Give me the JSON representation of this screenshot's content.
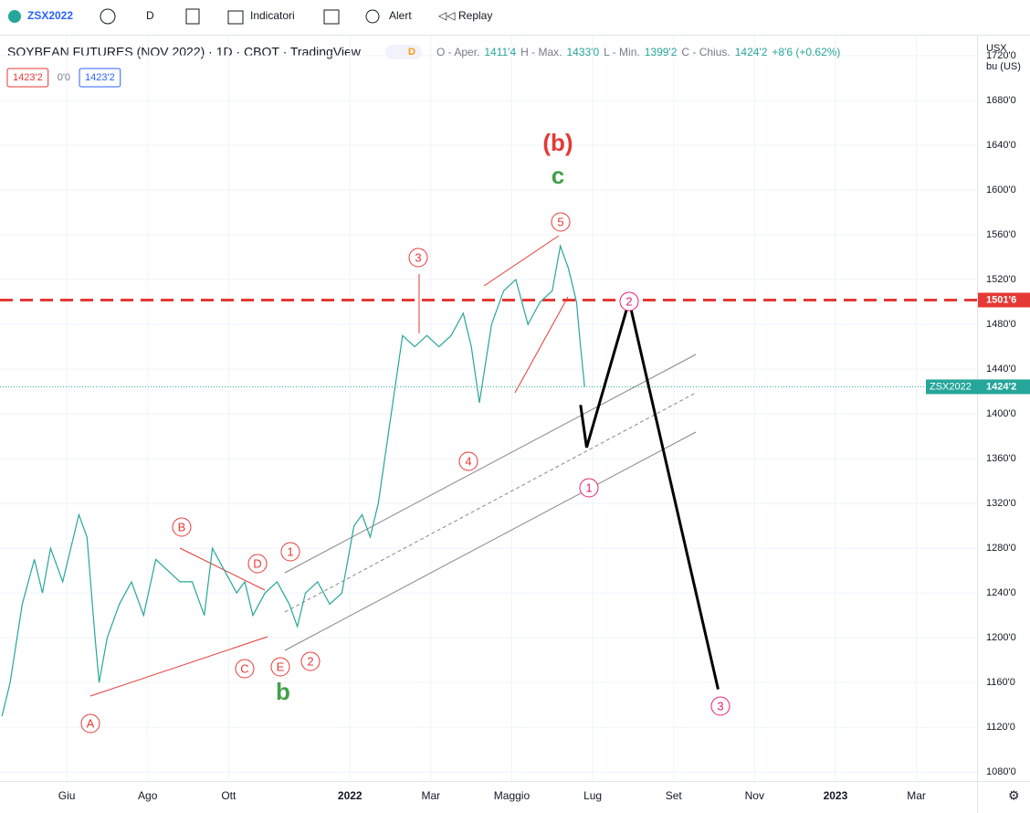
{
  "ui": {
    "symbol": "ZSX2022",
    "interval": "D",
    "indicators": "Indicatori",
    "alert": "Alert",
    "replay": "Replay",
    "currency": "USX",
    "unit": "bu (US)"
  },
  "chart_data": {
    "type": "line",
    "title": "SOYBEAN FUTURES (NOV 2022) · 1D · CBOT · TradingView",
    "badge": "D",
    "ohlc_labels": [
      "O - Aper.",
      "1411'4",
      "H - Max.",
      "1433'0",
      "L - Min.",
      "1399'2",
      "C - Chius.",
      "1424'2",
      "+8'6 (+0.62%)"
    ],
    "info_boxes": [
      "1423'2",
      "0'0",
      "1423'2"
    ],
    "xlim": [
      3.35,
      27.5
    ],
    "ylim": [
      1072,
      1738
    ],
    "xticks": [
      {
        "value": 5,
        "label": "Giu"
      },
      {
        "value": 7,
        "label": "Ago"
      },
      {
        "value": 9,
        "label": "Ott"
      },
      {
        "value": 12,
        "label": "2022"
      },
      {
        "value": 14,
        "label": "Mar"
      },
      {
        "value": 16,
        "label": "Maggio"
      },
      {
        "value": 18,
        "label": "Lug"
      },
      {
        "value": 20,
        "label": "Set"
      },
      {
        "value": 22,
        "label": "Nov"
      },
      {
        "value": 24,
        "label": "2023"
      },
      {
        "value": 26,
        "label": "Mar"
      }
    ],
    "yticks": [
      {
        "value": 1720,
        "label": "1720'0"
      },
      {
        "value": 1680,
        "label": "1680'0"
      },
      {
        "value": 1640,
        "label": "1640'0"
      },
      {
        "value": 1600,
        "label": "1600'0"
      },
      {
        "value": 1560,
        "label": "1560'0"
      },
      {
        "value": 1520,
        "label": "1520'0"
      },
      {
        "value": 1480,
        "label": "1480'0"
      },
      {
        "value": 1440,
        "label": "1440'0"
      },
      {
        "value": 1400,
        "label": "1400'0"
      },
      {
        "value": 1360,
        "label": "1360'0"
      },
      {
        "value": 1320,
        "label": "1320'0"
      },
      {
        "value": 1280,
        "label": "1280'0"
      },
      {
        "value": 1240,
        "label": "1240'0"
      },
      {
        "value": 1200,
        "label": "1200'0"
      },
      {
        "value": 1160,
        "label": "1160'0"
      },
      {
        "value": 1120,
        "label": "1120'0"
      },
      {
        "value": 1080,
        "label": "1080'0"
      }
    ],
    "grid": true,
    "series": [
      {
        "name": "ZSX2022",
        "color": "#26a69a",
        "x": [
          3.4,
          3.6,
          3.9,
          4.2,
          4.4,
          4.6,
          4.9,
          5.1,
          5.3,
          5.5,
          5.7,
          5.8,
          6.0,
          6.3,
          6.6,
          6.9,
          7.2,
          7.5,
          7.8,
          8.1,
          8.4,
          8.6,
          8.9,
          9.2,
          9.4,
          9.6,
          9.9,
          10.2,
          10.5,
          10.7,
          10.9,
          11.2,
          11.5,
          11.8,
          12.1,
          12.3,
          12.5,
          12.7,
          12.9,
          13.1,
          13.3,
          13.6,
          13.9,
          14.2,
          14.5,
          14.8,
          15.0,
          15.2,
          15.5,
          15.8,
          16.1,
          16.4,
          16.7,
          17.0,
          17.2,
          17.4,
          17.6,
          17.7,
          17.8
        ],
        "values": [
          1130,
          1160,
          1230,
          1270,
          1240,
          1280,
          1250,
          1280,
          1310,
          1290,
          1200,
          1160,
          1200,
          1230,
          1250,
          1220,
          1270,
          1260,
          1250,
          1250,
          1220,
          1280,
          1260,
          1240,
          1250,
          1220,
          1240,
          1250,
          1230,
          1210,
          1240,
          1250,
          1230,
          1240,
          1300,
          1310,
          1290,
          1320,
          1370,
          1420,
          1470,
          1460,
          1470,
          1460,
          1470,
          1490,
          1460,
          1410,
          1480,
          1510,
          1520,
          1480,
          1500,
          1510,
          1550,
          1530,
          1500,
          1460,
          1424.25
        ]
      },
      {
        "name": "projection",
        "color": "#000000",
        "x": [
          17.7,
          17.85,
          18.9,
          21.1
        ],
        "values": [
          1408,
          1370,
          1501,
          1154
        ]
      }
    ],
    "levels": [
      {
        "value": 1501.75,
        "label": "1501'6",
        "color": "#e53935"
      }
    ],
    "last_price": {
      "value": 1424.25,
      "label": "1424'2",
      "name": "ZSX2022",
      "color": "#26a69a"
    },
    "annotations": [
      {
        "text": "(b)",
        "color": "#e53935"
      },
      {
        "text": "c",
        "color": "#43a047"
      },
      {
        "text": "5",
        "color": "#e53935"
      },
      {
        "text": "3",
        "color": "#e53935"
      },
      {
        "text": "2",
        "color": "#e91e63"
      },
      {
        "text": "4",
        "color": "#e53935"
      },
      {
        "text": "1",
        "color": "#e91e63"
      },
      {
        "text": "3",
        "color": "#e91e63"
      },
      {
        "text": "B",
        "color": "#e53935"
      },
      {
        "text": "D",
        "color": "#e53935"
      },
      {
        "text": "1",
        "color": "#e53935"
      },
      {
        "text": "C",
        "color": "#e53935"
      },
      {
        "text": "E",
        "color": "#e53935"
      },
      {
        "text": "2",
        "color": "#e53935"
      },
      {
        "text": "A",
        "color": "#e53935"
      },
      {
        "text": "b",
        "color": "#43a047"
      }
    ]
  }
}
